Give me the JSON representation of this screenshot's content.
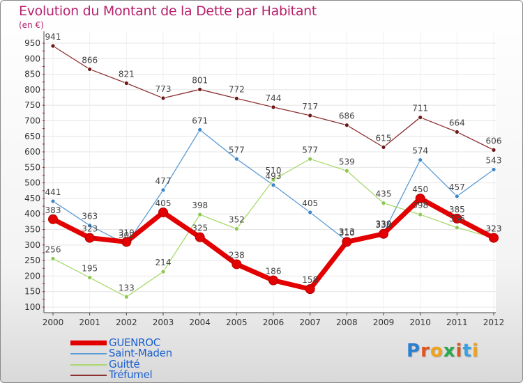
{
  "title": "Evolution du Montant de la Dette par Habitant",
  "unit": "(en €)",
  "logo": {
    "text": "Proxiti",
    "letter_colors": [
      "#2b7fd1",
      "#e0541d",
      "#f0a21a",
      "#2aa84a",
      "#e0541d",
      "#3aa0e0",
      "#f0a21a"
    ]
  },
  "chart_data": {
    "type": "line",
    "title": "Evolution du Montant de la Dette par Habitant",
    "ylabel": "(en €)",
    "xlabel": "",
    "x": [
      "2000",
      "2001",
      "2002",
      "2003",
      "2004",
      "2005",
      "2006",
      "2007",
      "2008",
      "2009",
      "2010",
      "2011",
      "2012"
    ],
    "ylim": [
      100,
      950
    ],
    "yticks": [
      100,
      150,
      200,
      250,
      300,
      350,
      400,
      450,
      500,
      550,
      600,
      650,
      700,
      750,
      800,
      850,
      900,
      950
    ],
    "grid": "horizontal",
    "legend_position": "bottom-left",
    "series": [
      {
        "name": "GUENROC",
        "values": [
          383,
          323,
          310,
          405,
          325,
          238,
          186,
          158,
          310,
          336,
          450,
          385,
          323
        ],
        "color": "#e20000",
        "marker": "#e20000"
      },
      {
        "name": "Saint-Maden",
        "values": [
          441,
          363,
          302,
          477,
          671,
          577,
          493,
          405,
          313,
          339,
          574,
          457,
          543
        ],
        "color": "#5b9bd5",
        "marker": "#3c86c9"
      },
      {
        "name": "Guitté",
        "values": [
          256,
          195,
          133,
          214,
          398,
          352,
          510,
          577,
          539,
          435,
          398,
          356,
          323
        ],
        "color": "#a8d96c",
        "marker": "#8cc850"
      },
      {
        "name": "Tréfumel",
        "values": [
          941,
          866,
          821,
          773,
          801,
          772,
          744,
          717,
          686,
          615,
          711,
          664,
          606
        ],
        "color": "#8b2f2f",
        "marker": "#6e1818"
      }
    ]
  }
}
